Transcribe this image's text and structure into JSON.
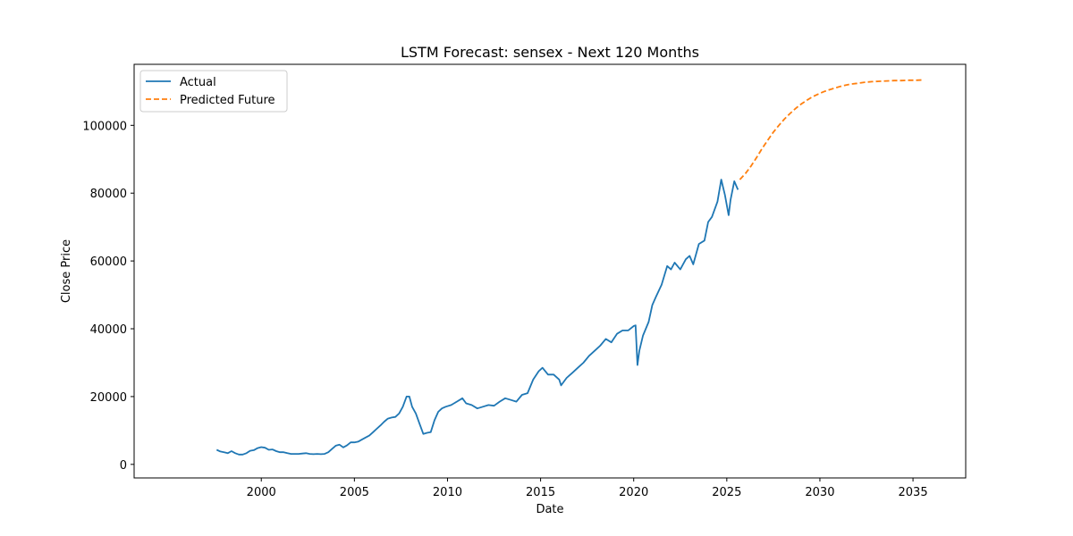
{
  "chart_data": {
    "type": "line",
    "title": "LSTM Forecast: sensex - Next 120 Months",
    "xlabel": "Date",
    "ylabel": "Close Price",
    "xlim": [
      1993.17,
      2037.83
    ],
    "ylim": [
      -4000,
      118000
    ],
    "xticks": [
      2000,
      2005,
      2010,
      2015,
      2020,
      2025,
      2030,
      2035
    ],
    "yticks": [
      0,
      20000,
      40000,
      60000,
      80000,
      100000
    ],
    "grid": false,
    "legend_position": "top-left",
    "series": [
      {
        "name": "Actual",
        "color": "#1f77b4",
        "style": "solid",
        "x": [
          1997.6,
          1997.8,
          1998.0,
          1998.2,
          1998.4,
          1998.6,
          1998.8,
          1999.0,
          1999.2,
          1999.4,
          1999.6,
          1999.8,
          2000.0,
          2000.2,
          2000.4,
          2000.6,
          2000.8,
          2001.0,
          2001.2,
          2001.4,
          2001.6,
          2001.8,
          2002.0,
          2002.2,
          2002.4,
          2002.6,
          2002.8,
          2003.0,
          2003.2,
          2003.4,
          2003.6,
          2003.8,
          2004.0,
          2004.2,
          2004.4,
          2004.6,
          2004.8,
          2005.0,
          2005.2,
          2005.4,
          2005.6,
          2005.8,
          2006.0,
          2006.2,
          2006.4,
          2006.6,
          2006.8,
          2007.0,
          2007.2,
          2007.4,
          2007.6,
          2007.8,
          2007.95,
          2008.1,
          2008.3,
          2008.5,
          2008.7,
          2008.9,
          2009.1,
          2009.3,
          2009.5,
          2009.7,
          2009.9,
          2010.2,
          2010.5,
          2010.8,
          2011.0,
          2011.3,
          2011.6,
          2011.9,
          2012.2,
          2012.5,
          2012.8,
          2013.1,
          2013.4,
          2013.7,
          2014.0,
          2014.3,
          2014.6,
          2014.9,
          2015.1,
          2015.4,
          2015.7,
          2016.0,
          2016.1,
          2016.4,
          2016.7,
          2017.0,
          2017.3,
          2017.6,
          2017.9,
          2018.2,
          2018.5,
          2018.8,
          2019.1,
          2019.4,
          2019.7,
          2020.0,
          2020.1,
          2020.2,
          2020.3,
          2020.5,
          2020.8,
          2021.0,
          2021.2,
          2021.5,
          2021.8,
          2022.0,
          2022.2,
          2022.5,
          2022.8,
          2023.0,
          2023.2,
          2023.5,
          2023.8,
          2024.0,
          2024.2,
          2024.5,
          2024.7,
          2024.9,
          2025.1,
          2025.2,
          2025.4,
          2025.6
        ],
        "y": [
          4300,
          3800,
          3600,
          3300,
          3900,
          3300,
          2900,
          2900,
          3300,
          4000,
          4200,
          4800,
          5100,
          4900,
          4300,
          4400,
          3900,
          3600,
          3600,
          3300,
          3100,
          3100,
          3100,
          3200,
          3300,
          3100,
          3000,
          3100,
          3000,
          3100,
          3600,
          4600,
          5500,
          5800,
          5000,
          5600,
          6500,
          6500,
          6700,
          7300,
          7900,
          8500,
          9500,
          10500,
          11500,
          12600,
          13500,
          13800,
          14000,
          15000,
          17000,
          20000,
          20000,
          17000,
          15000,
          12000,
          9000,
          9300,
          9500,
          13000,
          15500,
          16500,
          17000,
          17500,
          18500,
          19500,
          18000,
          17500,
          16500,
          17000,
          17500,
          17300,
          18500,
          19500,
          19000,
          18500,
          20500,
          21000,
          25000,
          27500,
          28500,
          26500,
          26500,
          25000,
          23300,
          25500,
          27000,
          28500,
          30000,
          32000,
          33500,
          35000,
          37000,
          36000,
          38500,
          39500,
          39500,
          40800,
          41000,
          29300,
          33500,
          38000,
          42000,
          47000,
          49500,
          53000,
          58500,
          57500,
          59500,
          57500,
          60500,
          61500,
          59000,
          65000,
          66000,
          71500,
          73000,
          77500,
          84000,
          79500,
          73500,
          78000,
          83500,
          81000
        ]
      },
      {
        "name": "Predicted Future",
        "color": "#ff7f0e",
        "style": "dashed",
        "x": [
          2025.7,
          2026.0,
          2026.3,
          2026.6,
          2026.9,
          2027.2,
          2027.5,
          2027.8,
          2028.1,
          2028.4,
          2028.7,
          2029.0,
          2029.3,
          2029.6,
          2029.9,
          2030.2,
          2030.5,
          2030.8,
          2031.1,
          2031.4,
          2031.7,
          2032.0,
          2032.4,
          2032.8,
          2033.2,
          2033.6,
          2034.0,
          2034.4,
          2034.8,
          2035.2,
          2035.5
        ],
        "y": [
          84000,
          85800,
          88000,
          90500,
          93200,
          95600,
          98000,
          100000,
          101900,
          103500,
          105000,
          106300,
          107400,
          108400,
          109200,
          109900,
          110500,
          111000,
          111500,
          111900,
          112200,
          112400,
          112700,
          112900,
          113000,
          113100,
          113200,
          113200,
          113300,
          113300,
          113400
        ]
      }
    ]
  }
}
